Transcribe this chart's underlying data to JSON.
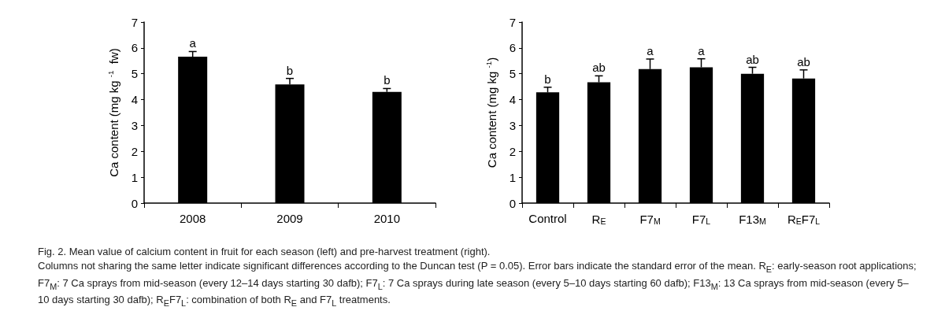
{
  "chart_data": [
    {
      "type": "bar",
      "ylabel": "Ca content (mg kg $^{-1}$  fw)",
      "categories": [
        "2008",
        "2009",
        "2010"
      ],
      "values": [
        5.66,
        4.59,
        4.3
      ],
      "errors": [
        0.2,
        0.23,
        0.13
      ],
      "value_labels": [
        "a",
        "b",
        "b"
      ],
      "color": "#000000",
      "ylim": [
        0,
        7
      ],
      "yticks": [
        0,
        1,
        2,
        3,
        4,
        5,
        6,
        7
      ],
      "annotations": [
        "Fig. 2.  Mean value of calcium content in fruit for each season (left) and pre-harvest treatment (right).",
        "Columns not sharing the same letter indicate significant differences according to the Duncan test (P = 0.05). Error bars indicate the standard error of the mean. R$_{E}$: early-season root applications; F7$_{M}$: 7 Ca sprays from mid-season (every 12–14 days starting 30 dafb); F7$_{L}$: 7 Ca sprays during late season (every 5–10 days starting 60 dafb); F13$_{M}$: 13 Ca sprays from mid-season (every 5–10 days starting 30 dafb); R$_{E}$F7$_{L}$: combination of both R$_{E}$ and F7$_{L}$ treatments."
      ]
    },
    {
      "type": "bar",
      "ylabel": "Ca content (mg kg $^{-1}$)",
      "categories": [
        "Control",
        "R$_{E}$",
        "F7$_{M}$",
        "F7$_{L}$",
        "F13$_{M}$",
        "R$_{E}$F7$_{L}$"
      ],
      "values": [
        4.28,
        4.67,
        5.18,
        5.25,
        5.0,
        4.82
      ],
      "errors": [
        0.2,
        0.25,
        0.39,
        0.33,
        0.25,
        0.33
      ],
      "value_labels": [
        "b",
        "ab",
        "a",
        "a",
        "ab",
        "ab"
      ],
      "color": "#000000",
      "ylim": [
        0,
        7
      ],
      "yticks": [
        0,
        1,
        2,
        3,
        4,
        5,
        6,
        7
      ]
    }
  ]
}
